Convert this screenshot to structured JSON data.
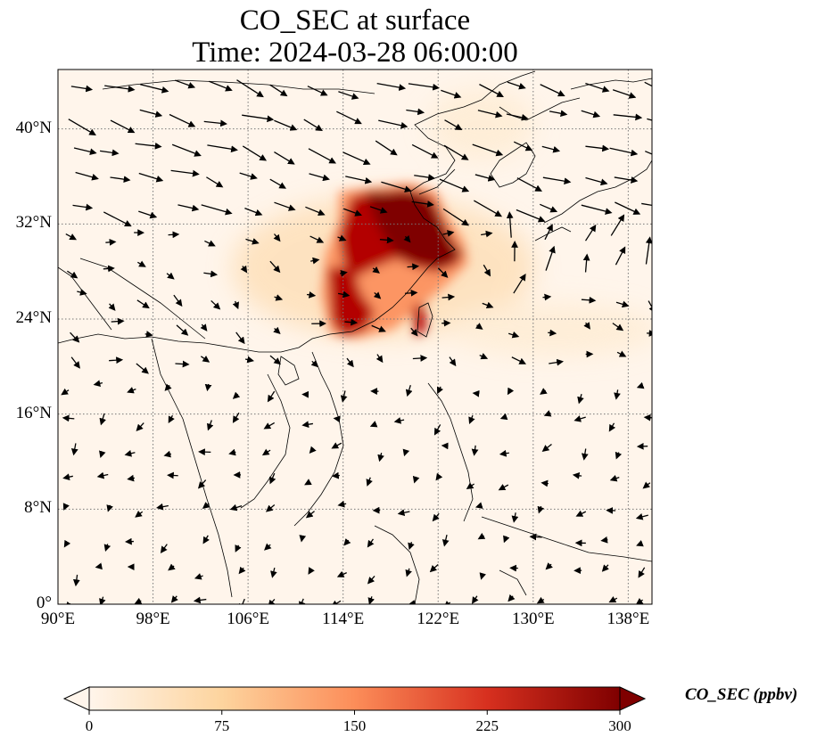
{
  "title": {
    "line1": "CO_SEC at surface",
    "line2": "Time: 2024-03-28 06:00:00"
  },
  "map": {
    "extent": {
      "lon_min": 90,
      "lon_max": 140,
      "lat_min": 0,
      "lat_max": 45
    },
    "gridlines": "dotted",
    "coastlines": true,
    "x_ticks": [
      {
        "lon": 90,
        "label": "90°E"
      },
      {
        "lon": 98,
        "label": "98°E"
      },
      {
        "lon": 106,
        "label": "106°E"
      },
      {
        "lon": 114,
        "label": "114°E"
      },
      {
        "lon": 122,
        "label": "122°E"
      },
      {
        "lon": 130,
        "label": "130°E"
      },
      {
        "lon": 138,
        "label": "138°E"
      }
    ],
    "y_ticks": [
      {
        "lat": 0,
        "label": "0°"
      },
      {
        "lat": 8,
        "label": "8°N"
      },
      {
        "lat": 16,
        "label": "16°N"
      },
      {
        "lat": 24,
        "label": "24°N"
      },
      {
        "lat": 32,
        "label": "32°N"
      },
      {
        "lat": 40,
        "label": "40°N"
      }
    ],
    "field": "CO_SEC",
    "field_color_low": "#fff5eb",
    "field_color_high": "#7f0000",
    "wind_vectors": true
  },
  "colorbar": {
    "label": "CO_SEC (ppbv)",
    "min": 0,
    "max": 300,
    "extend": "both",
    "colormap": "OrRd-like",
    "ticks": [
      {
        "value": 0,
        "label": "0"
      },
      {
        "value": 75,
        "label": "75"
      },
      {
        "value": 150,
        "label": "150"
      },
      {
        "value": 225,
        "label": "225"
      },
      {
        "value": 300,
        "label": "300"
      }
    ]
  }
}
